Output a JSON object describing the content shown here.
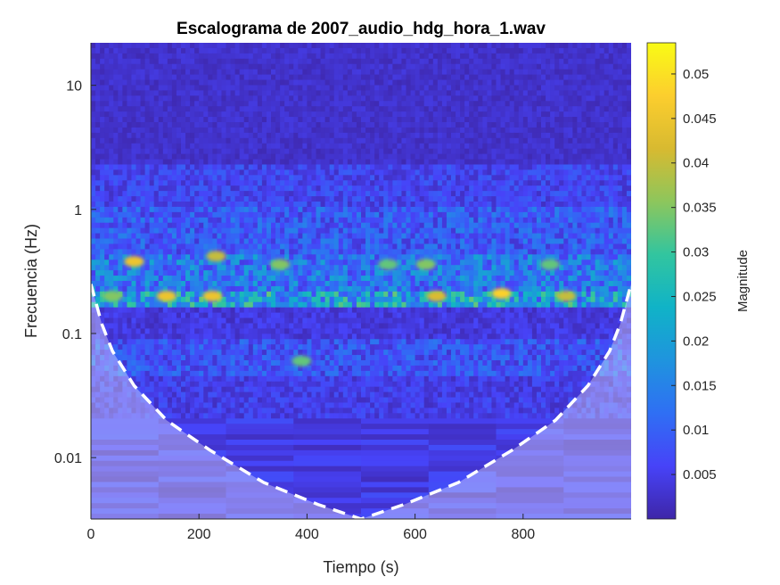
{
  "chart_data": {
    "type": "heatmap",
    "title": "Escalograma de 2007_audio_hdg_hora_1.wav",
    "xlabel": "Tiempo (s)",
    "ylabel": "Frecuencia (Hz)",
    "xlim": [
      0,
      1000
    ],
    "ylim": [
      0.0032,
      22
    ],
    "y_scale": "log",
    "x_ticks": [
      0,
      200,
      400,
      600,
      800
    ],
    "x_tick_labels": [
      "0",
      "200",
      "400",
      "600",
      "800"
    ],
    "y_ticks": [
      0.01,
      0.1,
      1,
      10
    ],
    "y_tick_labels": [
      "0.01",
      "0.1",
      "1",
      "10"
    ],
    "colorbar": {
      "label": "Magnitude",
      "range": [
        0,
        0.0535
      ],
      "ticks": [
        0.005,
        0.01,
        0.015,
        0.02,
        0.025,
        0.03,
        0.035,
        0.04,
        0.045,
        0.05
      ],
      "tick_labels": [
        "0.005",
        "0.01",
        "0.015",
        "0.02",
        "0.025",
        "0.03",
        "0.035",
        "0.04",
        "0.045",
        "0.05"
      ],
      "colormap": [
        "#3e26a8",
        "#4743f8",
        "#2f6ff4",
        "#1f94de",
        "#10b3c7",
        "#32c59f",
        "#8dc65c",
        "#d8ba30",
        "#fcce2e",
        "#f9fb15"
      ]
    },
    "cone_of_influence_points": [
      {
        "t": 0,
        "f": 0.25
      },
      {
        "t": 20,
        "f": 0.12
      },
      {
        "t": 40,
        "f": 0.072
      },
      {
        "t": 80,
        "f": 0.038
      },
      {
        "t": 140,
        "f": 0.02
      },
      {
        "t": 220,
        "f": 0.0115
      },
      {
        "t": 320,
        "f": 0.0063
      },
      {
        "t": 420,
        "f": 0.0042
      },
      {
        "t": 500,
        "f": 0.0032
      },
      {
        "t": 580,
        "f": 0.0042
      },
      {
        "t": 680,
        "f": 0.0063
      },
      {
        "t": 780,
        "f": 0.0115
      },
      {
        "t": 860,
        "f": 0.02
      },
      {
        "t": 920,
        "f": 0.038
      },
      {
        "t": 960,
        "f": 0.072
      },
      {
        "t": 980,
        "f": 0.12
      },
      {
        "t": 1000,
        "f": 0.25
      }
    ],
    "hotspots": [
      {
        "t": 140,
        "f": 0.2,
        "mag": 0.045
      },
      {
        "t": 225,
        "f": 0.2,
        "mag": 0.045
      },
      {
        "t": 80,
        "f": 0.38,
        "mag": 0.045
      },
      {
        "t": 232,
        "f": 0.42,
        "mag": 0.04
      },
      {
        "t": 640,
        "f": 0.2,
        "mag": 0.042
      },
      {
        "t": 760,
        "f": 0.21,
        "mag": 0.048
      },
      {
        "t": 880,
        "f": 0.2,
        "mag": 0.04
      },
      {
        "t": 40,
        "f": 0.2,
        "mag": 0.035
      },
      {
        "t": 390,
        "f": 0.06,
        "mag": 0.033
      },
      {
        "t": 350,
        "f": 0.36,
        "mag": 0.035
      },
      {
        "t": 620,
        "f": 0.36,
        "mag": 0.035
      },
      {
        "t": 550,
        "f": 0.36,
        "mag": 0.033
      },
      {
        "t": 850,
        "f": 0.36,
        "mag": 0.033
      }
    ]
  }
}
